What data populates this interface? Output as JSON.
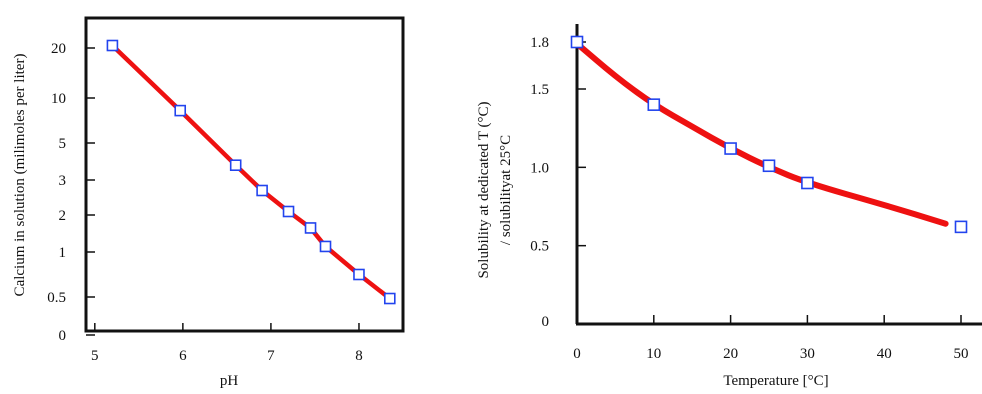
{
  "chart_data": [
    {
      "type": "line",
      "title": "",
      "xlabel": "pH",
      "ylabel": "Calcium in solution (milimoles per liter)",
      "xlim": [
        4.9,
        8.5
      ],
      "x_ticks": [
        5,
        6,
        7,
        8
      ],
      "x_tick_labels": [
        "5",
        "6",
        "7",
        "8"
      ],
      "y_ticks": [
        "0",
        "0.5",
        "1",
        "2",
        "3",
        "5",
        "10",
        "20"
      ],
      "y_scale": "categorical-compressed",
      "grid": false,
      "series": [
        {
          "color": "#ee1111",
          "marker_color": "#2244ee",
          "points": [
            {
              "x": 5.2,
              "y": 20.5
            },
            {
              "x": 5.97,
              "y": 8.6
            },
            {
              "x": 6.6,
              "y": 3.8
            },
            {
              "x": 6.9,
              "y": 2.7
            },
            {
              "x": 7.2,
              "y": 2.1
            },
            {
              "x": 7.45,
              "y": 1.65
            },
            {
              "x": 7.62,
              "y": 1.15
            },
            {
              "x": 8.0,
              "y": 0.75
            },
            {
              "x": 8.35,
              "y": 0.48
            }
          ]
        }
      ]
    },
    {
      "type": "line",
      "title": "",
      "xlabel": "Temperature [°C]",
      "ylabel_lines": [
        "Solubility at dedicated T (°C)",
        "/ solubilityat 25°C"
      ],
      "xlim": [
        0,
        52
      ],
      "ylim": [
        0,
        1.85
      ],
      "x_ticks": [
        0,
        10,
        20,
        30,
        40,
        50
      ],
      "y_ticks": [
        0,
        0.5,
        1.0,
        1.5,
        1.8
      ],
      "y_tick_labels": [
        "0",
        "0.5",
        "1.0",
        "1.5",
        "1.8"
      ],
      "grid": false,
      "series": [
        {
          "color": "#ee1111",
          "marker_color": "#2244ee",
          "line": [
            [
              0,
              1.79
            ],
            [
              5,
              1.58
            ],
            [
              10,
              1.4
            ],
            [
              15,
              1.26
            ],
            [
              20,
              1.12
            ],
            [
              25,
              1.0
            ],
            [
              30,
              0.9
            ],
            [
              40,
              0.76
            ],
            [
              48,
              0.64
            ]
          ],
          "points": [
            {
              "x": 0,
              "y": 1.8
            },
            {
              "x": 10,
              "y": 1.4
            },
            {
              "x": 20,
              "y": 1.12
            },
            {
              "x": 25,
              "y": 1.01
            },
            {
              "x": 30,
              "y": 0.9
            },
            {
              "x": 50,
              "y": 0.62
            }
          ]
        }
      ]
    }
  ]
}
